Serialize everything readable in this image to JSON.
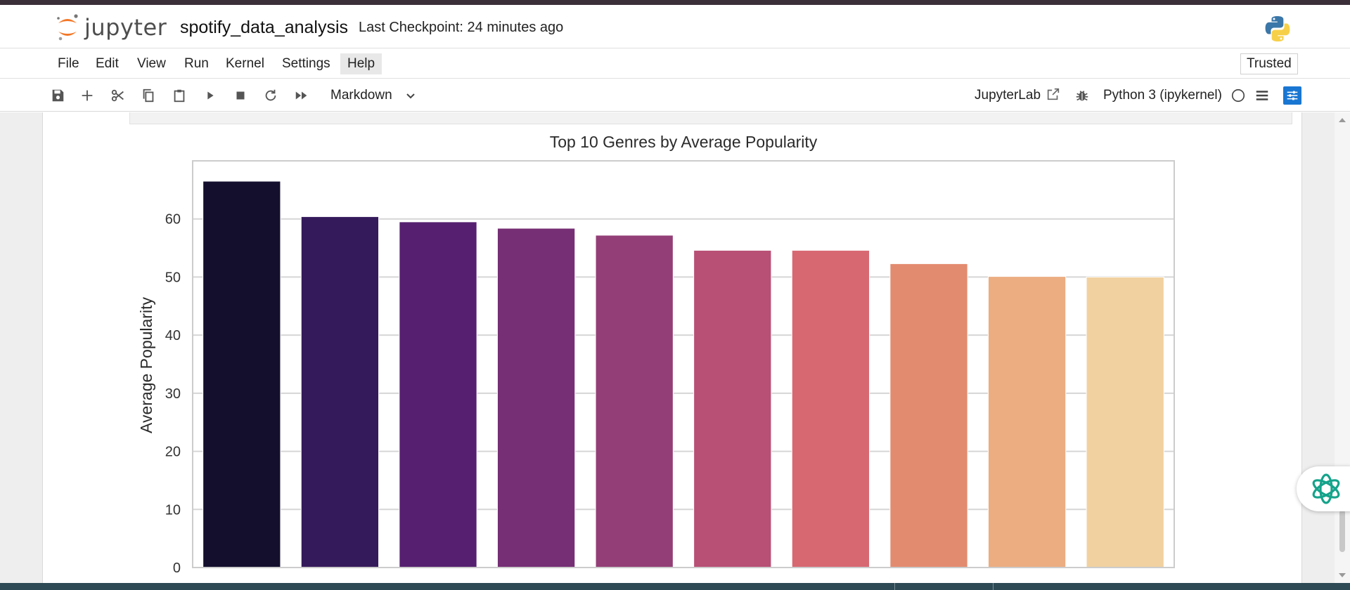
{
  "header": {
    "logo_text": "jupyter",
    "notebook_name": "spotify_data_analysis",
    "checkpoint": "Last Checkpoint: 24 minutes ago"
  },
  "menu": {
    "items": [
      "File",
      "Edit",
      "View",
      "Run",
      "Kernel",
      "Settings",
      "Help"
    ],
    "active": "Help",
    "trusted": "Trusted"
  },
  "toolbar": {
    "cell_type": "Markdown",
    "jupyterlab_label": "JupyterLab",
    "kernel": "Python 3 (ipykernel)"
  },
  "colors": {
    "bars": [
      "#150f2e",
      "#351a5b",
      "#561f70",
      "#762e74",
      "#933e76",
      "#b84f74",
      "#d76872",
      "#e38b6f",
      "#ecad81",
      "#f1d1a0"
    ]
  },
  "chart_data": {
    "type": "bar",
    "title": "Top 10 Genres by Average Popularity",
    "xlabel": "",
    "ylabel": "Average Popularity",
    "categories": [
      "",
      "",
      "",
      "",
      "",
      "",
      "",
      "",
      "",
      ""
    ],
    "values": [
      66.5,
      60.4,
      59.5,
      58.4,
      57.2,
      54.6,
      54.6,
      52.3,
      50.1,
      50.0
    ],
    "yticks": [
      0,
      10,
      20,
      30,
      40,
      50,
      60
    ],
    "ylim": [
      0,
      70
    ],
    "grid": true
  }
}
